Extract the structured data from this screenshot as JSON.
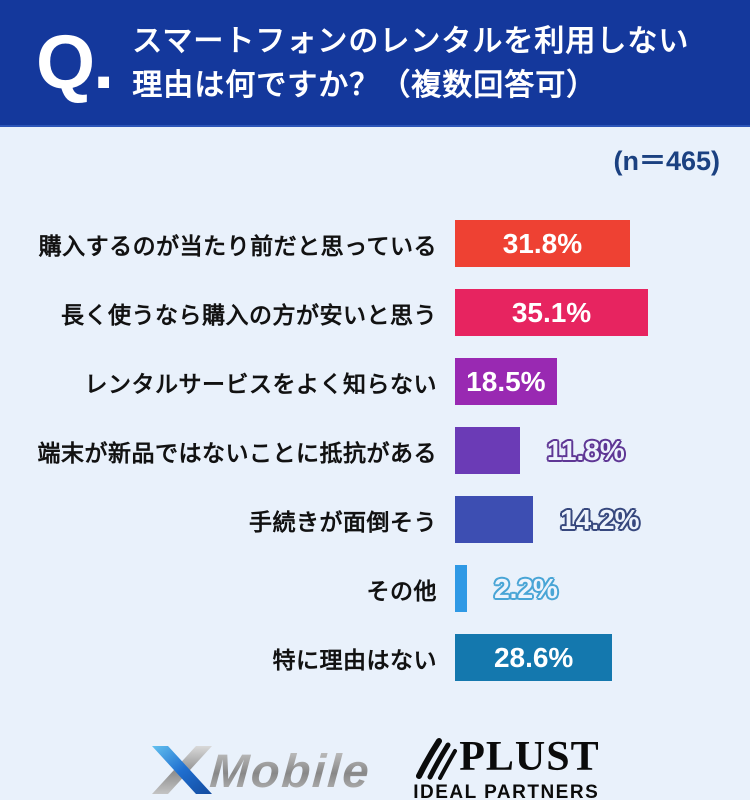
{
  "header": {
    "q_mark": "Q.",
    "title_line1": "スマートフォンのレンタルを利用しない",
    "title_line2": "理由は何ですか？（複数回答可）"
  },
  "chart_data": {
    "type": "bar",
    "orientation": "horizontal",
    "title": "スマートフォンのレンタルを利用しない理由は何ですか？（複数回答可）",
    "sample_label": "(n＝465)",
    "sample_size": 465,
    "categories": [
      "購入するのが当たり前だと思っている",
      "長く使うなら購入の方が安いと思う",
      "レンタルサービスをよく知らない",
      "端末が新品ではないことに抵抗がある",
      "手続きが面倒そう",
      "その他",
      "特に理由はない"
    ],
    "values": [
      31.8,
      35.1,
      18.5,
      11.8,
      14.2,
      2.2,
      28.6
    ],
    "value_labels": [
      "31.8%",
      "35.1%",
      "18.5%",
      "11.8%",
      "14.2%",
      "2.2%",
      "28.6%"
    ],
    "bar_colors": [
      "#ee4133",
      "#e72460",
      "#9929b2",
      "#6b3bb6",
      "#3d4eb2",
      "#2f99e5",
      "#1478ae"
    ],
    "label_placement": [
      "inside",
      "inside",
      "inside",
      "outside",
      "outside",
      "outside",
      "inside"
    ],
    "outline_colors": [
      null,
      null,
      null,
      "#5f3795",
      "#37487e",
      "#49a5d6",
      null
    ],
    "xlim": [
      0,
      50
    ],
    "grid": false,
    "legend": false
  },
  "footer": {
    "xmobile_text": "Mobile",
    "plust_name": "PLUST",
    "plust_subtitle": "IDEAL PARTNERS"
  },
  "colors": {
    "header_bg": "#14389c",
    "page_bg": "#e9f1fb",
    "sample_label_color": "#1b4181",
    "category_label_color": "#121212",
    "inside_value_color": "#ffffff"
  }
}
